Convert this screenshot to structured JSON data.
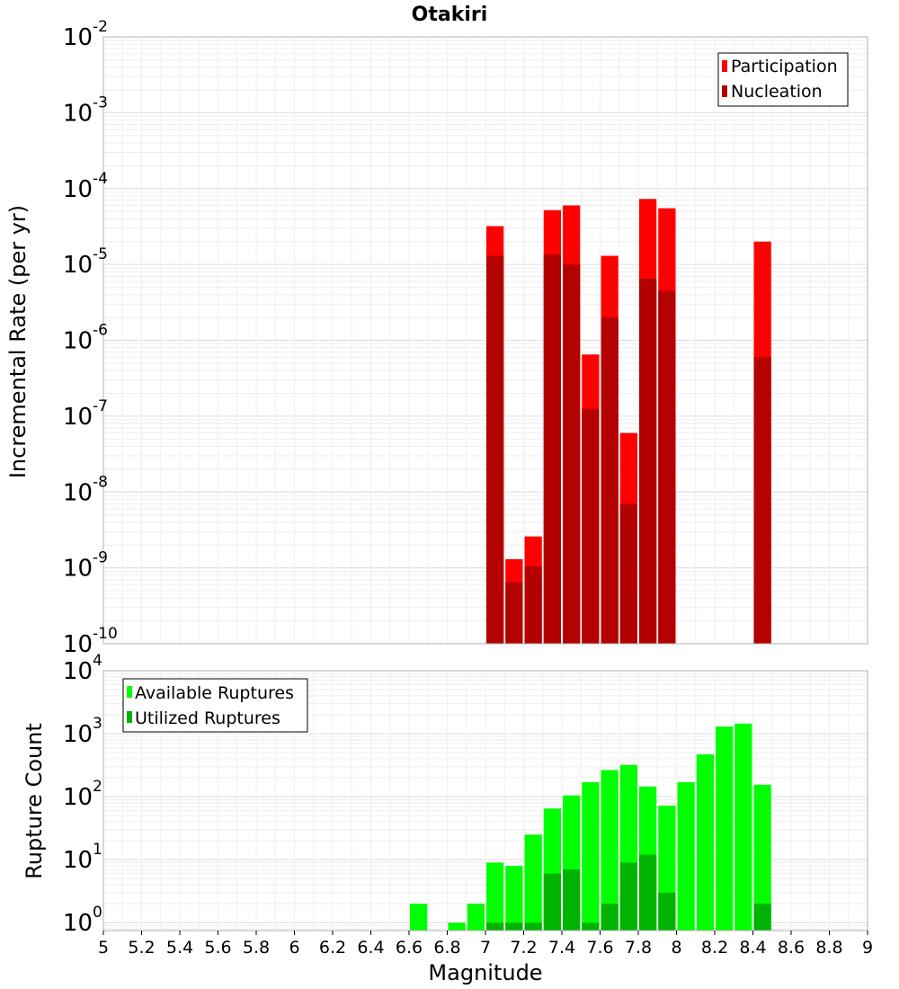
{
  "chart_data": [
    {
      "type": "bar",
      "title": "Otakiri",
      "ylabel": "Incremental Rate (per yr)",
      "xlabel": "",
      "y_scale": "log",
      "ylim_exp": [
        -10,
        -2
      ],
      "y_tick_base": "10",
      "y_tick_exps": [
        "-10",
        "-9",
        "-8",
        "-7",
        "-6",
        "-5",
        "-4",
        "-3",
        "-2"
      ],
      "legend_position": "top-right",
      "stacked": "overlay",
      "series": [
        {
          "name": "Participation",
          "color": "#ff0000",
          "x": [
            7.05,
            7.15,
            7.25,
            7.35,
            7.45,
            7.55,
            7.65,
            7.75,
            7.85,
            7.95,
            8.45
          ],
          "values": [
            3.2e-05,
            1.3e-09,
            2.6e-09,
            5.2e-05,
            6e-05,
            6.5e-07,
            1.3e-05,
            6e-08,
            7.3e-05,
            5.5e-05,
            2e-05
          ]
        },
        {
          "name": "Nucleation",
          "color": "#b30000",
          "x": [
            7.05,
            7.15,
            7.25,
            7.35,
            7.45,
            7.55,
            7.65,
            7.75,
            7.85,
            7.95,
            8.45
          ],
          "values": [
            1.3e-05,
            6.5e-10,
            1.05e-09,
            1.35e-05,
            1e-05,
            1.25e-07,
            2e-06,
            7e-09,
            6.5e-06,
            4.5e-06,
            6e-07
          ]
        }
      ]
    },
    {
      "type": "bar",
      "title": "",
      "ylabel": "Rupture Count",
      "xlabel": "Magnitude",
      "y_scale": "log",
      "ylim": [
        0.75,
        10000
      ],
      "y_tick_base": "10",
      "y_tick_exps": [
        "0",
        "1",
        "2",
        "3",
        "4"
      ],
      "x_range": [
        5,
        9
      ],
      "x_ticks": [
        "5",
        "5.2",
        "5.4",
        "5.6",
        "5.8",
        "6",
        "6.2",
        "6.4",
        "6.6",
        "6.8",
        "7",
        "7.2",
        "7.4",
        "7.6",
        "7.8",
        "8",
        "8.2",
        "8.4",
        "8.6",
        "8.8",
        "9"
      ],
      "legend_position": "top-left",
      "stacked": "overlay",
      "series": [
        {
          "name": "Available Ruptures",
          "color": "#00ff00",
          "x": [
            6.65,
            6.85,
            6.95,
            7.05,
            7.15,
            7.25,
            7.35,
            7.45,
            7.55,
            7.65,
            7.75,
            7.85,
            7.95,
            8.05,
            8.15,
            8.25,
            8.35,
            8.45
          ],
          "values": [
            2,
            1,
            2,
            9,
            8,
            25,
            65,
            105,
            170,
            265,
            320,
            145,
            72,
            170,
            470,
            1300,
            1450,
            155
          ]
        },
        {
          "name": "Utilized Ruptures",
          "color": "#00b300",
          "x": [
            7.05,
            7.15,
            7.25,
            7.35,
            7.45,
            7.55,
            7.65,
            7.75,
            7.85,
            7.95,
            8.45
          ],
          "values": [
            1,
            1,
            1,
            6,
            7,
            1,
            2,
            9,
            12,
            3,
            2
          ]
        }
      ]
    }
  ]
}
